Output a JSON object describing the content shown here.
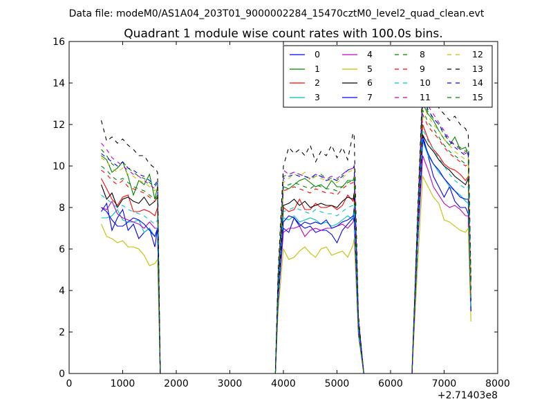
{
  "header": {
    "file_label": "Data file: modeM0/AS1A04_203T01_9000002284_15470cztM0_level2_quad_clean.evt"
  },
  "chart_data": {
    "type": "line",
    "title": "Quadrant 1 module wise count rates with 100.0s bins.",
    "xlabel": "",
    "ylabel": "",
    "x_offset_label": "+2.71403e8",
    "xlim": [
      0,
      8000
    ],
    "ylim": [
      0,
      16
    ],
    "xticks": [
      "0",
      "1000",
      "2000",
      "3000",
      "4000",
      "5000",
      "6000",
      "7000",
      "8000"
    ],
    "yticks": [
      "0",
      "2",
      "4",
      "6",
      "8",
      "10",
      "12",
      "14",
      "16"
    ],
    "grid": false,
    "legend": {
      "position": "top-right",
      "columns": 4
    },
    "x": [
      600,
      700,
      800,
      900,
      1000,
      1100,
      1200,
      1300,
      1400,
      1500,
      1600,
      1650,
      1700,
      1800,
      2000,
      2500,
      3000,
      3500,
      3850,
      3900,
      4000,
      4100,
      4200,
      4300,
      4400,
      4500,
      4600,
      4700,
      4800,
      4900,
      5000,
      5100,
      5200,
      5300,
      5320,
      5400,
      5500,
      6000,
      6400,
      6500,
      6600,
      6700,
      6800,
      6900,
      7000,
      7100,
      7200,
      7300,
      7400,
      7450,
      7500
    ],
    "series": [
      {
        "name": "0",
        "color": "#0000ff",
        "dash": false,
        "values": [
          7.8,
          8.2,
          6.9,
          7.5,
          7.9,
          6.9,
          7.2,
          6.5,
          6.8,
          7.0,
          6.1,
          7.0,
          0,
          0,
          0,
          0,
          0,
          0,
          0,
          3.5,
          7.0,
          6.8,
          7.5,
          7.2,
          7.0,
          7.1,
          6.8,
          6.9,
          6.9,
          6.7,
          6.3,
          6.9,
          7.2,
          7.5,
          8.0,
          2.0,
          0,
          0,
          0,
          6.0,
          11.5,
          10.5,
          9.5,
          9.0,
          8.5,
          9.0,
          8.3,
          8.0,
          8.0,
          7.7,
          3.0
        ]
      },
      {
        "name": "1",
        "color": "#008000",
        "dash": false,
        "values": [
          10.5,
          10.3,
          9.7,
          9.9,
          10.2,
          9.5,
          8.6,
          9.3,
          9.1,
          9.6,
          8.4,
          9.0,
          0,
          0,
          0,
          0,
          0,
          0,
          0,
          4.5,
          9.0,
          8.9,
          9.1,
          9.3,
          9.4,
          9.2,
          9.0,
          9.1,
          8.9,
          9.3,
          9.0,
          9.0,
          9.3,
          9.3,
          9.5,
          2.5,
          0,
          0,
          0,
          7.0,
          13.0,
          12.5,
          12.2,
          11.7,
          11.3,
          11.0,
          11.4,
          10.8,
          10.9,
          10.5,
          4.0
        ]
      },
      {
        "name": "2",
        "color": "#ff0000",
        "dash": false,
        "values": [
          9.4,
          8.9,
          8.4,
          8.1,
          8.5,
          8.6,
          7.8,
          7.8,
          7.9,
          7.8,
          7.6,
          8.0,
          0,
          0,
          0,
          0,
          0,
          0,
          0,
          4.0,
          8.0,
          7.8,
          7.9,
          8.4,
          7.9,
          7.9,
          8.2,
          8.0,
          8.0,
          8.1,
          7.9,
          8.1,
          8.6,
          8.3,
          8.5,
          2.2,
          0,
          0,
          0,
          6.5,
          12.0,
          11.3,
          10.8,
          10.5,
          10.1,
          9.9,
          9.8,
          9.6,
          9.3,
          9.5,
          3.5
        ]
      },
      {
        "name": "3",
        "color": "#00bfbf",
        "dash": false,
        "values": [
          7.5,
          7.5,
          7.6,
          7.9,
          7.4,
          7.3,
          7.3,
          7.4,
          6.8,
          7.0,
          6.6,
          7.0,
          0,
          0,
          0,
          0,
          0,
          0,
          0,
          3.5,
          7.5,
          7.4,
          7.6,
          7.3,
          7.4,
          7.5,
          7.4,
          7.2,
          7.3,
          7.1,
          7.2,
          7.4,
          7.6,
          7.4,
          7.8,
          2.0,
          0,
          0,
          0,
          6.0,
          11.2,
          10.5,
          10.1,
          9.7,
          9.4,
          9.0,
          8.8,
          8.6,
          8.3,
          8.2,
          3.0
        ]
      },
      {
        "name": "4",
        "color": "#bf00bf",
        "dash": false,
        "values": [
          8.0,
          7.9,
          8.3,
          7.7,
          7.5,
          7.4,
          7.3,
          7.2,
          7.0,
          7.3,
          7.0,
          7.0,
          0,
          0,
          0,
          0,
          0,
          0,
          0,
          3.5,
          6.8,
          7.0,
          7.0,
          7.1,
          6.6,
          6.9,
          7.0,
          6.9,
          7.0,
          7.0,
          7.1,
          7.2,
          7.0,
          7.3,
          7.5,
          2.0,
          0,
          0,
          0,
          6.0,
          10.5,
          9.8,
          9.0,
          8.6,
          8.2,
          8.0,
          8.1,
          7.9,
          7.6,
          7.6,
          3.0
        ]
      },
      {
        "name": "5",
        "color": "#bfbf00",
        "dash": false,
        "values": [
          7.2,
          6.6,
          6.5,
          6.3,
          6.4,
          6.1,
          6.1,
          6.0,
          5.7,
          5.2,
          5.3,
          5.5,
          0,
          0,
          0,
          0,
          0,
          0,
          0,
          3.0,
          6.0,
          5.5,
          5.6,
          5.9,
          6.1,
          5.8,
          5.6,
          6.0,
          6.1,
          5.7,
          5.8,
          5.9,
          5.6,
          6.2,
          6.5,
          1.8,
          0,
          0,
          0,
          5.0,
          9.5,
          9.0,
          8.5,
          8.2,
          7.4,
          7.3,
          7.1,
          6.9,
          6.8,
          7.0,
          2.5
        ]
      },
      {
        "name": "6",
        "color": "#000000",
        "dash": false,
        "values": [
          9.1,
          8.4,
          8.7,
          8.0,
          8.4,
          8.5,
          8.3,
          8.2,
          8.5,
          8.1,
          8.3,
          8.5,
          0,
          0,
          0,
          0,
          0,
          0,
          0,
          4.0,
          8.1,
          8.2,
          8.4,
          8.1,
          8.3,
          8.0,
          8.1,
          8.2,
          8.1,
          8.1,
          8.0,
          8.3,
          8.5,
          8.4,
          8.7,
          2.3,
          0,
          0,
          0,
          6.5,
          11.5,
          11.0,
          10.7,
          10.3,
          10.0,
          9.8,
          9.5,
          9.3,
          9.1,
          9.4,
          3.5
        ]
      },
      {
        "name": "7",
        "color": "#0000ff",
        "dash": false,
        "values": [
          8.0,
          7.8,
          7.4,
          7.1,
          7.1,
          7.3,
          7.5,
          7.4,
          7.2,
          6.9,
          6.6,
          7.0,
          0,
          0,
          0,
          0,
          0,
          0,
          0,
          3.5,
          7.3,
          7.6,
          7.5,
          7.1,
          7.3,
          7.2,
          7.3,
          7.2,
          7.4,
          7.0,
          7.1,
          7.3,
          7.4,
          7.6,
          7.6,
          2.0,
          0,
          0,
          0,
          6.0,
          11.3,
          10.6,
          10.1,
          9.8,
          9.4,
          9.1,
          8.8,
          8.5,
          8.4,
          8.4,
          3.0
        ]
      },
      {
        "name": "8",
        "color": "#008000",
        "dash": true,
        "values": [
          10.8,
          10.5,
          10.1,
          9.9,
          10.2,
          9.9,
          9.7,
          9.5,
          9.4,
          9.2,
          9.0,
          9.2,
          0,
          0,
          0,
          0,
          0,
          0,
          0,
          4.5,
          9.5,
          9.6,
          9.7,
          9.6,
          9.5,
          9.4,
          9.5,
          9.6,
          9.4,
          9.4,
          9.3,
          9.6,
          9.8,
          9.9,
          10.0,
          2.6,
          0,
          0,
          0,
          7.0,
          13.2,
          12.6,
          12.3,
          12.0,
          11.5,
          11.2,
          11.0,
          10.9,
          10.7,
          10.8,
          4.0
        ]
      },
      {
        "name": "9",
        "color": "#ff0000",
        "dash": true,
        "values": [
          9.8,
          9.6,
          9.3,
          9.1,
          9.3,
          9.0,
          8.9,
          8.8,
          8.7,
          8.5,
          8.3,
          8.5,
          0,
          0,
          0,
          0,
          0,
          0,
          0,
          4.3,
          8.8,
          8.9,
          9.0,
          8.9,
          8.8,
          8.7,
          8.9,
          8.8,
          8.7,
          8.7,
          8.6,
          8.9,
          9.1,
          9.2,
          9.3,
          2.4,
          0,
          0,
          0,
          6.8,
          12.5,
          11.9,
          11.6,
          11.3,
          10.9,
          10.6,
          10.4,
          10.2,
          10.0,
          10.1,
          3.7
        ]
      },
      {
        "name": "10",
        "color": "#00bfbf",
        "dash": true,
        "values": [
          8.6,
          8.4,
          8.2,
          8.0,
          8.1,
          7.9,
          7.8,
          7.7,
          7.6,
          7.4,
          7.2,
          7.4,
          0,
          0,
          0,
          0,
          0,
          0,
          0,
          3.8,
          7.8,
          7.9,
          8.0,
          7.9,
          7.8,
          7.7,
          7.9,
          7.8,
          7.7,
          7.7,
          7.6,
          7.8,
          8.0,
          8.1,
          8.2,
          2.1,
          0,
          0,
          0,
          6.2,
          11.8,
          11.2,
          10.8,
          10.4,
          10.0,
          9.6,
          9.3,
          9.1,
          8.9,
          9.0,
          3.2
        ]
      },
      {
        "name": "11",
        "color": "#bf00bf",
        "dash": true,
        "values": [
          11.1,
          10.8,
          10.4,
          10.2,
          10.0,
          9.8,
          9.6,
          9.5,
          9.3,
          9.1,
          8.9,
          9.0,
          0,
          0,
          0,
          0,
          0,
          0,
          0,
          4.6,
          9.8,
          9.6,
          9.7,
          9.6,
          9.5,
          9.4,
          9.6,
          9.5,
          9.4,
          9.5,
          9.4,
          9.6,
          9.8,
          9.9,
          10.1,
          2.6,
          0,
          0,
          0,
          7.2,
          13.6,
          12.9,
          12.5,
          12.1,
          11.7,
          11.3,
          11.0,
          10.8,
          10.6,
          10.7,
          4.0
        ]
      },
      {
        "name": "12",
        "color": "#bfbf00",
        "dash": true,
        "values": [
          10.4,
          10.2,
          9.9,
          9.7,
          9.9,
          9.6,
          9.5,
          9.3,
          9.2,
          9.0,
          8.8,
          9.0,
          0,
          0,
          0,
          0,
          0,
          0,
          0,
          4.5,
          9.2,
          9.4,
          9.6,
          9.5,
          9.7,
          9.3,
          9.5,
          9.4,
          9.3,
          9.3,
          9.2,
          9.4,
          9.7,
          9.8,
          9.9,
          2.5,
          0,
          0,
          0,
          7.0,
          13.0,
          12.4,
          12.0,
          11.7,
          11.3,
          11.0,
          10.7,
          10.5,
          10.3,
          10.4,
          3.8
        ]
      },
      {
        "name": "13",
        "color": "#000000",
        "dash": true,
        "values": [
          12.2,
          11.2,
          11.4,
          11.1,
          11.3,
          11.0,
          10.8,
          10.5,
          10.5,
          10.1,
          9.9,
          9.7,
          0,
          0,
          0,
          0,
          0,
          0,
          0,
          4.9,
          10.0,
          10.9,
          10.6,
          10.8,
          10.5,
          11.0,
          10.2,
          10.7,
          10.5,
          11.0,
          10.4,
          10.9,
          10.3,
          11.6,
          11.5,
          2.8,
          0,
          0,
          0,
          7.5,
          14.0,
          13.2,
          13.7,
          12.8,
          12.5,
          12.2,
          12.4,
          12.0,
          11.8,
          11.5,
          4.5
        ]
      },
      {
        "name": "14",
        "color": "#0000ff",
        "dash": true,
        "values": [
          10.6,
          10.4,
          10.2,
          10.0,
          10.2,
          9.9,
          9.8,
          9.6,
          9.5,
          9.3,
          9.1,
          9.3,
          0,
          0,
          0,
          0,
          0,
          0,
          0,
          4.6,
          9.4,
          9.5,
          9.6,
          9.5,
          9.5,
          9.4,
          9.6,
          9.5,
          9.3,
          9.4,
          9.3,
          9.5,
          9.8,
          9.9,
          10.0,
          2.6,
          0,
          0,
          0,
          7.1,
          13.4,
          12.7,
          12.3,
          12.0,
          11.6,
          11.2,
          10.9,
          10.7,
          10.5,
          10.6,
          4.0
        ]
      },
      {
        "name": "15",
        "color": "#008000",
        "dash": true,
        "values": [
          10.0,
          9.8,
          9.5,
          9.3,
          9.4,
          9.2,
          9.0,
          8.9,
          8.8,
          8.6,
          8.4,
          8.6,
          0,
          0,
          0,
          0,
          0,
          0,
          0,
          4.3,
          9.0,
          9.1,
          9.2,
          9.1,
          9.0,
          8.9,
          9.1,
          9.0,
          8.9,
          8.9,
          8.8,
          9.0,
          9.2,
          9.3,
          9.4,
          2.4,
          0,
          0,
          0,
          6.8,
          12.7,
          12.1,
          11.8,
          11.4,
          11.0,
          10.7,
          10.5,
          10.3,
          10.1,
          10.2,
          3.8
        ]
      }
    ]
  }
}
